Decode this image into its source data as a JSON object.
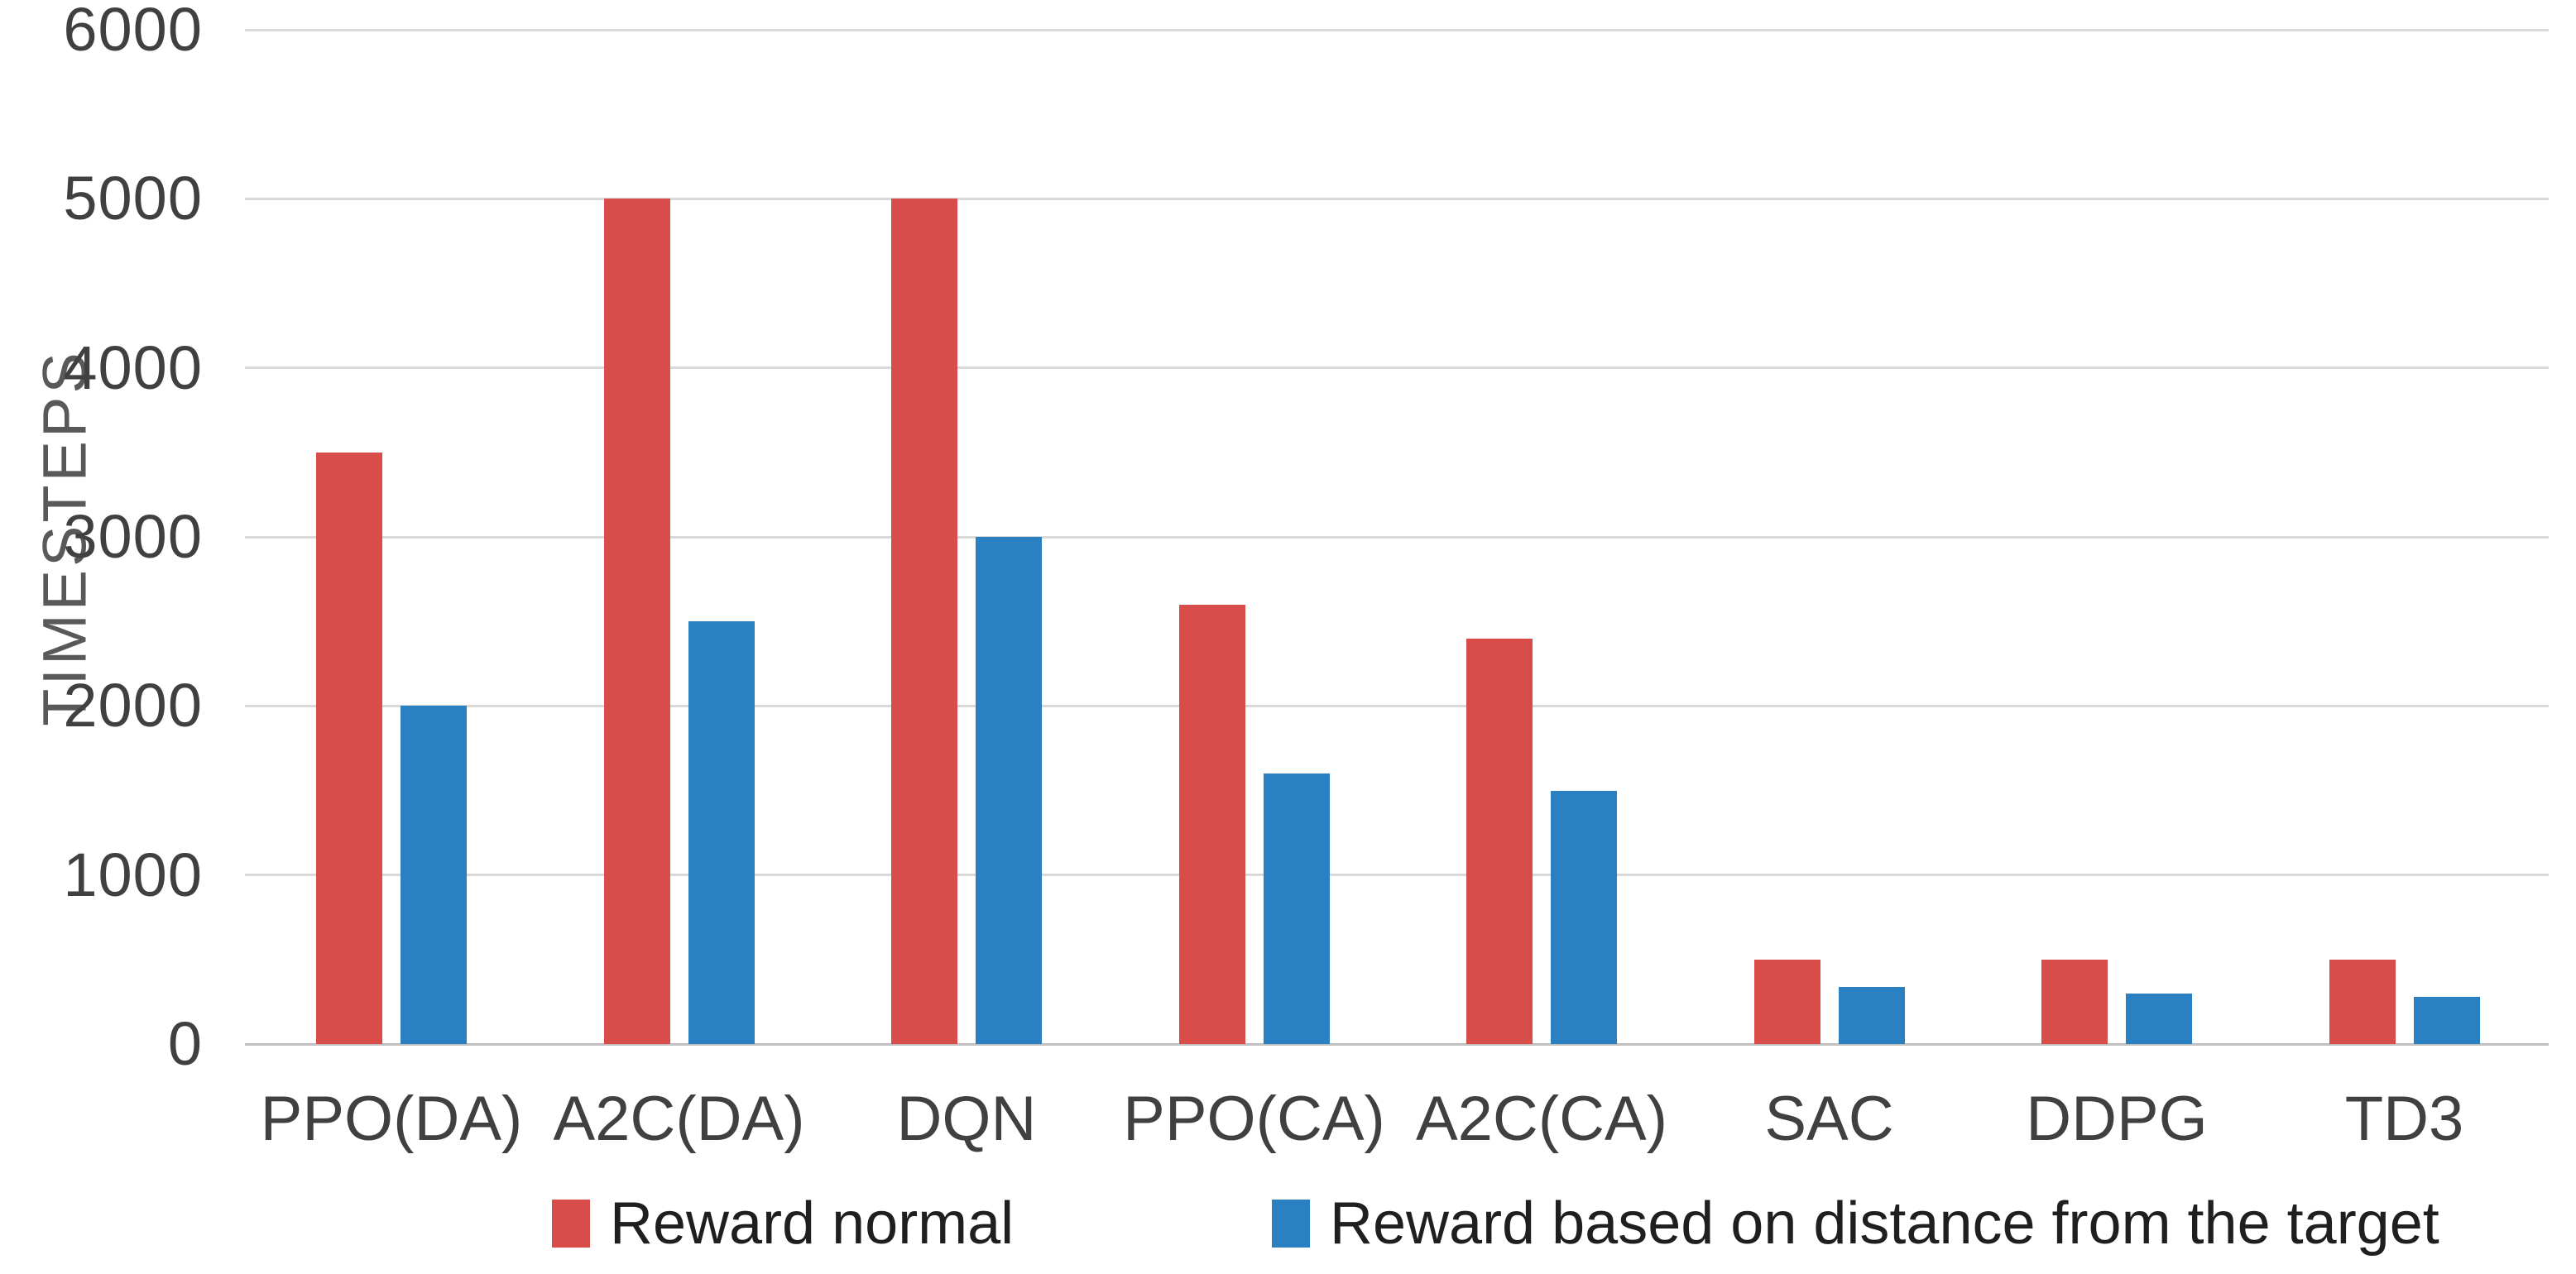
{
  "chart_data": {
    "type": "bar",
    "title": "",
    "xlabel": "",
    "ylabel": "TIMESTEPS",
    "categories": [
      "PPO(DA)",
      "A2C(DA)",
      "DQN",
      "PPO(CA)",
      "A2C(CA)",
      "SAC",
      "DDPG",
      "TD3"
    ],
    "series": [
      {
        "name": "Reward normal",
        "color": "#d84c4a",
        "values": [
          3500,
          5000,
          5000,
          2600,
          2400,
          500,
          500,
          500
        ]
      },
      {
        "name": "Reward based on distance from the target",
        "color": "#2b80c1",
        "values": [
          2000,
          2500,
          3000,
          1600,
          1500,
          340,
          300,
          280
        ]
      }
    ],
    "ylim": [
      0,
      6000
    ],
    "yticks": [
      0,
      1000,
      2000,
      3000,
      4000,
      5000,
      6000
    ],
    "grid": true,
    "legend_position": "bottom"
  },
  "colors": {
    "background": "#ffffff",
    "gridline": "#d9d9d9",
    "axis_line": "#c0c0c0",
    "tick_label": "#404040",
    "category_label": "#404040",
    "legend_text": "#1f1f1f",
    "axis_title": "#595959"
  }
}
